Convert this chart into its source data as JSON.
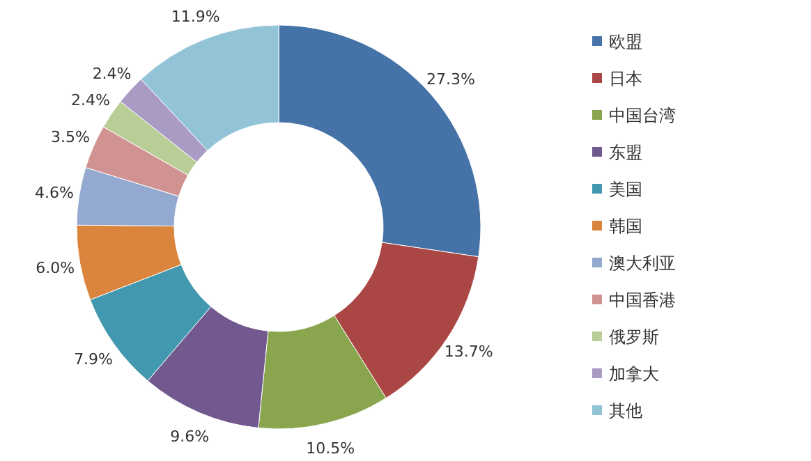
{
  "chart_data": {
    "type": "donut",
    "categories": [
      "欧盟",
      "日本",
      "中国台湾",
      "东盟",
      "美国",
      "韩国",
      "澳大利亚",
      "中国香港",
      "俄罗斯",
      "加拿大",
      "其他"
    ],
    "values": [
      27.3,
      13.7,
      10.5,
      9.6,
      7.9,
      6.0,
      4.6,
      3.5,
      2.4,
      2.4,
      11.9
    ],
    "colors": [
      "#4572a7",
      "#aa4643",
      "#89a54e",
      "#71588f",
      "#4198af",
      "#db843d",
      "#93a9cf",
      "#d19392",
      "#b9cd96",
      "#a99bc3",
      "#92c3d6"
    ],
    "value_labels": [
      "27.3%",
      "13.7%",
      "10.5%",
      "9.6%",
      "7.9%",
      "6.0%",
      "4.6%",
      "3.5%",
      "2.4%",
      "2.4%",
      "11.9%"
    ],
    "legend": "right"
  }
}
